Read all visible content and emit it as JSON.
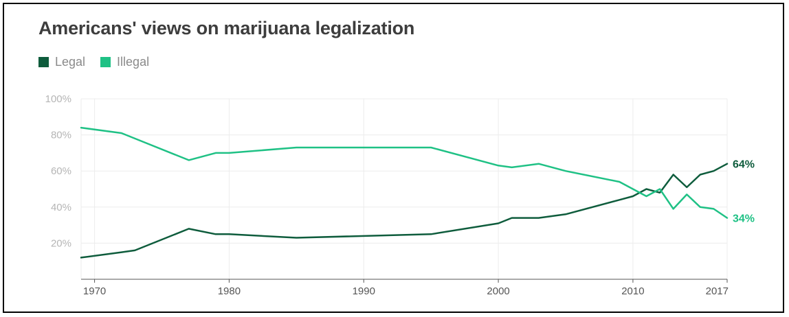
{
  "title": "Americans' views on marijuana legalization",
  "legend": [
    {
      "label": "Legal",
      "color": "#0e5c3c"
    },
    {
      "label": "Illegal",
      "color": "#1fc185"
    }
  ],
  "chart_data": {
    "type": "line",
    "title": "Americans' views on marijuana legalization",
    "xlabel": "",
    "ylabel": "",
    "xlim": [
      1969,
      2017
    ],
    "ylim": [
      0,
      100
    ],
    "y_ticks": [
      {
        "value": 20,
        "label": "20%"
      },
      {
        "value": 40,
        "label": "40%"
      },
      {
        "value": 60,
        "label": "60%"
      },
      {
        "value": 80,
        "label": "80%"
      },
      {
        "value": 100,
        "label": "100%"
      }
    ],
    "x_ticks": [
      {
        "value": 1970,
        "label": "1970"
      },
      {
        "value": 1980,
        "label": "1980"
      },
      {
        "value": 1990,
        "label": "1990"
      },
      {
        "value": 2000,
        "label": "2000"
      },
      {
        "value": 2010,
        "label": "2010"
      },
      {
        "value": 2017,
        "label": "2017"
      }
    ],
    "grid": true,
    "legend_position": "top-left",
    "series": [
      {
        "name": "Legal",
        "color": "#0e5c3c",
        "end_label": "64%",
        "points": [
          [
            1969,
            12
          ],
          [
            1972,
            15
          ],
          [
            1973,
            16
          ],
          [
            1977,
            28
          ],
          [
            1979,
            25
          ],
          [
            1980,
            25
          ],
          [
            1985,
            23
          ],
          [
            1995,
            25
          ],
          [
            2000,
            31
          ],
          [
            2001,
            34
          ],
          [
            2003,
            34
          ],
          [
            2005,
            36
          ],
          [
            2009,
            44
          ],
          [
            2010,
            46
          ],
          [
            2011,
            50
          ],
          [
            2012,
            48
          ],
          [
            2013,
            58
          ],
          [
            2014,
            51
          ],
          [
            2015,
            58
          ],
          [
            2016,
            60
          ],
          [
            2017,
            64
          ]
        ]
      },
      {
        "name": "Illegal",
        "color": "#1fc185",
        "end_label": "34%",
        "points": [
          [
            1969,
            84
          ],
          [
            1972,
            81
          ],
          [
            1973,
            78
          ],
          [
            1977,
            66
          ],
          [
            1979,
            70
          ],
          [
            1980,
            70
          ],
          [
            1985,
            73
          ],
          [
            1995,
            73
          ],
          [
            2000,
            63
          ],
          [
            2001,
            62
          ],
          [
            2003,
            64
          ],
          [
            2005,
            60
          ],
          [
            2009,
            54
          ],
          [
            2010,
            50
          ],
          [
            2011,
            46
          ],
          [
            2012,
            50
          ],
          [
            2013,
            39
          ],
          [
            2014,
            47
          ],
          [
            2015,
            40
          ],
          [
            2016,
            39
          ],
          [
            2017,
            34
          ]
        ]
      }
    ]
  }
}
